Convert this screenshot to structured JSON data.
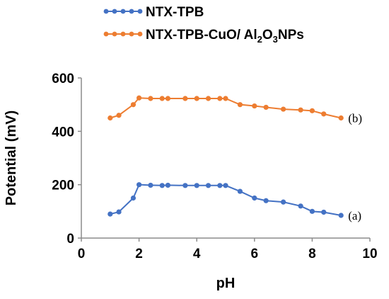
{
  "chart_data": {
    "type": "line",
    "xlabel": "pH",
    "ylabel": "Potential (mV)",
    "xlim": [
      0,
      10
    ],
    "ylim": [
      0,
      600
    ],
    "xticks": [
      0,
      2,
      4,
      6,
      8,
      10
    ],
    "yticks": [
      0,
      200,
      400,
      600
    ],
    "grid": false,
    "legend_position": "top-left, above plot",
    "series": [
      {
        "name": "NTX-TPB",
        "legend_main": "NTX-TPB",
        "color": "#4472c4",
        "annotation": "(a)",
        "x": [
          1.0,
          1.3,
          1.8,
          2.0,
          2.4,
          2.8,
          3.0,
          3.6,
          4.0,
          4.4,
          4.8,
          5.0,
          5.5,
          6.0,
          6.4,
          7.0,
          7.6,
          8.0,
          8.4,
          9.0
        ],
        "y": [
          90,
          98,
          150,
          200,
          198,
          197,
          198,
          197,
          197,
          197,
          197,
          197,
          175,
          150,
          140,
          135,
          120,
          100,
          97,
          85
        ]
      },
      {
        "name": "NTX-TPB-CuO/Al2O3NPs",
        "legend_main": "NTX-TPB-CuO/ Al",
        "legend_sub1": "2",
        "legend_mid": "O",
        "legend_sub2": "3",
        "legend_tail": "NPs",
        "color": "#ed7d31",
        "annotation": "(b)",
        "x": [
          1.0,
          1.3,
          1.8,
          2.0,
          2.4,
          2.8,
          3.0,
          3.6,
          4.0,
          4.4,
          4.8,
          5.0,
          5.5,
          6.0,
          6.4,
          7.0,
          7.6,
          8.0,
          8.4,
          9.0
        ],
        "y": [
          450,
          460,
          500,
          525,
          523,
          523,
          523,
          523,
          523,
          523,
          523,
          523,
          500,
          495,
          490,
          483,
          480,
          477,
          465,
          450
        ]
      }
    ]
  }
}
